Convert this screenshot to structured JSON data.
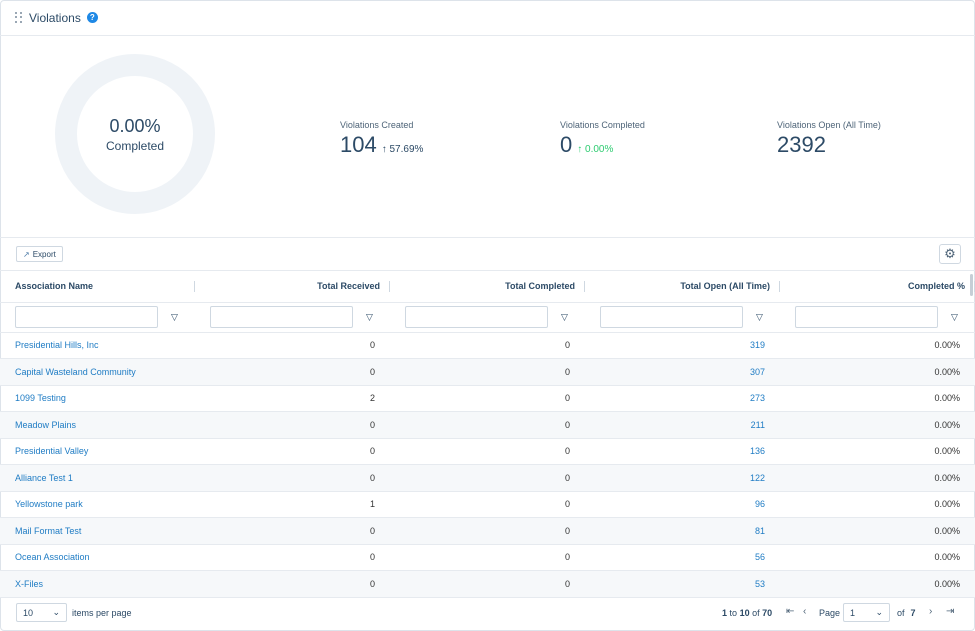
{
  "header": {
    "title": "Violations",
    "help": "?"
  },
  "donut": {
    "percent": "0.00%",
    "label": "Completed"
  },
  "stats": [
    {
      "label": "Violations Created",
      "value": "104",
      "delta": "57.69%",
      "trend": "up"
    },
    {
      "label": "Violations Completed",
      "value": "0",
      "delta": "0.00%",
      "trend": "up"
    },
    {
      "label": "Violations Open (All Time)",
      "value": "2392",
      "delta": "",
      "trend": ""
    }
  ],
  "toolbar": {
    "export_label": "Export"
  },
  "table": {
    "columns": [
      "Association Name",
      "Total Received",
      "Total Completed",
      "Total Open (All Time)",
      "Completed %"
    ],
    "rows": [
      [
        "Presidential Hills, Inc",
        "0",
        "0",
        "319",
        "0.00%"
      ],
      [
        "Capital Wasteland Community",
        "0",
        "0",
        "307",
        "0.00%"
      ],
      [
        "1099 Testing",
        "2",
        "0",
        "273",
        "0.00%"
      ],
      [
        "Meadow Plains",
        "0",
        "0",
        "211",
        "0.00%"
      ],
      [
        "Presidential Valley",
        "0",
        "0",
        "136",
        "0.00%"
      ],
      [
        "Alliance Test 1",
        "0",
        "0",
        "122",
        "0.00%"
      ],
      [
        "Yellowstone park",
        "1",
        "0",
        "96",
        "0.00%"
      ],
      [
        "Mail Format Test",
        "0",
        "0",
        "81",
        "0.00%"
      ],
      [
        "Ocean Association",
        "0",
        "0",
        "56",
        "0.00%"
      ],
      [
        "X-Files",
        "0",
        "0",
        "53",
        "0.00%"
      ]
    ]
  },
  "pager": {
    "page_size": "10",
    "items_per_page": "items per page",
    "range_start": "1",
    "range_to": "to",
    "range_end": "10",
    "range_of": "of",
    "total": "70",
    "page_label": "Page",
    "page": "1",
    "of_label": "of",
    "page_count": "7"
  }
}
